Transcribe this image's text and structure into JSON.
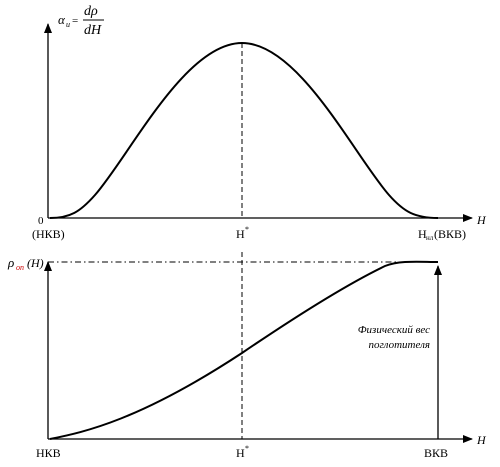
{
  "top_plot": {
    "y_label": {
      "alpha": "α",
      "alpha_sub": "u",
      "eq": "=",
      "numerator": "dρ",
      "denominator": "dH"
    },
    "x_axis_label": "H",
    "origin_label": "0",
    "tick_left": "(НКВ)",
    "tick_mid": "H",
    "tick_mid_sup": "*",
    "tick_right_main": "H",
    "tick_right_sub": "нл",
    "tick_right_paren": "(ВКВ)"
  },
  "bottom_plot": {
    "y_label_rho": "ρ",
    "y_label_sub": "оп",
    "y_label_arg": "(H)",
    "x_axis_label": "H",
    "tick_left": "НКВ",
    "tick_mid": "H",
    "tick_mid_sup": "*",
    "tick_right": "ВКВ",
    "annotation_line1": "Физический вес",
    "annotation_line2": "поглотителя"
  },
  "colors": {
    "ink": "#000000",
    "subscript_accent": "#cc0000"
  }
}
